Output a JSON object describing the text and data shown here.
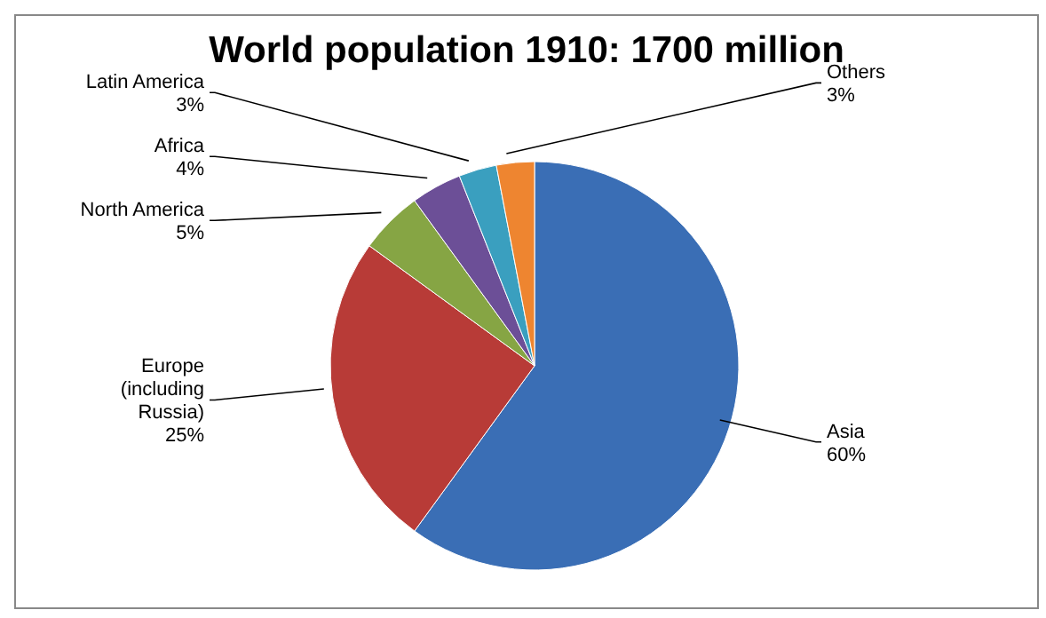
{
  "chart_data": {
    "type": "pie",
    "title": "World population 1910: 1700 million",
    "categories": [
      "Asia",
      "Europe (including Russia)",
      "North America",
      "Africa",
      "Latin America",
      "Others"
    ],
    "values": [
      60,
      25,
      5,
      4,
      3,
      3
    ],
    "value_labels": [
      "60%",
      "25%",
      "5%",
      "4%",
      "3%",
      "3%"
    ],
    "colors": [
      "#3a6eb5",
      "#b83b37",
      "#86a544",
      "#6c4f97",
      "#3a9fbf",
      "#ee8530"
    ],
    "legend": false
  }
}
